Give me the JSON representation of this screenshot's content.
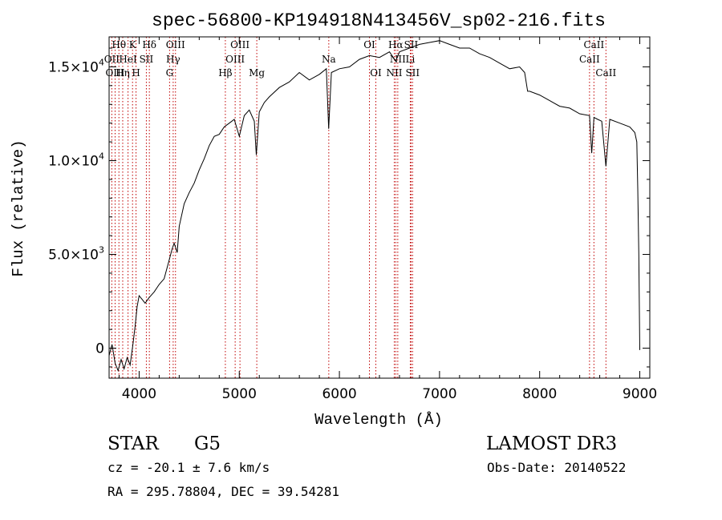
{
  "chart_data": {
    "type": "line",
    "title": "spec-56800-KP194918N413456V_sp02-216.fits",
    "xlabel": "Wavelength (Å)",
    "ylabel": "Flux (relative)",
    "xlim": [
      3700,
      9100
    ],
    "ylim": [
      -1600,
      16600
    ],
    "x_ticks": [
      4000,
      5000,
      6000,
      7000,
      8000,
      9000
    ],
    "x_tick_labels": [
      "4000",
      "5000",
      "6000",
      "7000",
      "8000",
      "9000"
    ],
    "y_ticks": [
      {
        "value": 0,
        "mantissa": "0",
        "exponent": ""
      },
      {
        "value": 5000,
        "mantissa": "5.0×10",
        "exponent": "3"
      },
      {
        "value": 10000,
        "mantissa": "1.0×10",
        "exponent": "4"
      },
      {
        "value": 15000,
        "mantissa": "1.5×10",
        "exponent": "4"
      }
    ],
    "series": [
      {
        "name": "spectrum",
        "x": [
          3700,
          3730,
          3760,
          3790,
          3820,
          3850,
          3880,
          3910,
          3940,
          3960,
          3980,
          4000,
          4030,
          4060,
          4100,
          4150,
          4200,
          4250,
          4300,
          4330,
          4350,
          4380,
          4400,
          4450,
          4500,
          4550,
          4600,
          4650,
          4700,
          4750,
          4800,
          4850,
          4900,
          4950,
          5000,
          5050,
          5100,
          5150,
          5170,
          5200,
          5250,
          5300,
          5400,
          5500,
          5600,
          5700,
          5800,
          5870,
          5893,
          5920,
          6000,
          6100,
          6200,
          6300,
          6400,
          6500,
          6563,
          6600,
          6700,
          6800,
          6900,
          7000,
          7100,
          7200,
          7300,
          7400,
          7500,
          7600,
          7700,
          7800,
          7850,
          7880,
          7900,
          8000,
          8100,
          8200,
          8300,
          8400,
          8498,
          8520,
          8542,
          8580,
          8620,
          8662,
          8700,
          8800,
          8900,
          8950,
          8970,
          8980,
          8990,
          9000
        ],
        "y": [
          -400,
          200,
          -800,
          -1200,
          -600,
          -1100,
          -500,
          -900,
          300,
          1200,
          2200,
          2800,
          2600,
          2400,
          2700,
          3000,
          3400,
          3700,
          4700,
          5300,
          5600,
          5100,
          6500,
          7700,
          8300,
          8800,
          9500,
          10100,
          10800,
          11300,
          11400,
          11800,
          12000,
          12200,
          11300,
          12400,
          12700,
          12100,
          10300,
          12600,
          13100,
          13400,
          13900,
          14200,
          14700,
          14300,
          14600,
          14900,
          11700,
          14700,
          14900,
          15000,
          15400,
          15600,
          15500,
          15800,
          15300,
          15800,
          16000,
          16200,
          16300,
          16400,
          16200,
          16000,
          16000,
          15700,
          15500,
          15200,
          14900,
          15000,
          14700,
          13700,
          13700,
          13500,
          13200,
          12900,
          12800,
          12500,
          12400,
          10400,
          12300,
          12200,
          12100,
          9700,
          12200,
          12000,
          11800,
          11500,
          11000,
          8500,
          5000,
          -100
        ]
      }
    ],
    "spectral_lines": [
      {
        "name": "Hθ",
        "wavelength": 3798,
        "row": 0
      },
      {
        "name": "OII",
        "wavelength": 3727,
        "row": 1
      },
      {
        "name": "OIII",
        "wavelength": 3760,
        "row": 2
      },
      {
        "name": "Hη",
        "wavelength": 3836,
        "row": 2
      },
      {
        "name": "HeI",
        "wavelength": 3889,
        "row": 1
      },
      {
        "name": "K",
        "wavelength": 3934,
        "row": 0
      },
      {
        "name": "H",
        "wavelength": 3969,
        "row": 2
      },
      {
        "name": "SII",
        "wavelength": 4072,
        "row": 1
      },
      {
        "name": "Hδ",
        "wavelength": 4102,
        "row": 0
      },
      {
        "name": "G",
        "wavelength": 4304,
        "row": 2
      },
      {
        "name": "Hγ",
        "wavelength": 4340,
        "row": 1
      },
      {
        "name": "OIII",
        "wavelength": 4363,
        "row": 0
      },
      {
        "name": "Hβ",
        "wavelength": 4861,
        "row": 2
      },
      {
        "name": "OIII",
        "wavelength": 4959,
        "row": 1
      },
      {
        "name": "OIII",
        "wavelength": 5007,
        "row": 0
      },
      {
        "name": "Mg",
        "wavelength": 5175,
        "row": 2
      },
      {
        "name": "Na",
        "wavelength": 5894,
        "row": 1
      },
      {
        "name": "OI",
        "wavelength": 6300,
        "row": 0
      },
      {
        "name": "OI",
        "wavelength": 6364,
        "row": 2
      },
      {
        "name": "NII",
        "wavelength": 6548,
        "row": 2
      },
      {
        "name": "Hα",
        "wavelength": 6563,
        "row": 0
      },
      {
        "name": "NII",
        "wavelength": 6583,
        "row": 1
      },
      {
        "name": "Li",
        "wavelength": 6708,
        "row": 1
      },
      {
        "name": "SII",
        "wavelength": 6716,
        "row": 0
      },
      {
        "name": "SII",
        "wavelength": 6731,
        "row": 2
      },
      {
        "name": "CaII",
        "wavelength": 8498,
        "row": 1
      },
      {
        "name": "CaII",
        "wavelength": 8542,
        "row": 0
      },
      {
        "name": "CaII",
        "wavelength": 8662,
        "row": 2
      }
    ]
  },
  "info": {
    "class": "STAR",
    "subclass": "G5",
    "survey": "LAMOST DR3",
    "cz": "cz = -20.1 ± 7.6 km/s",
    "obs_date": "Obs-Date: 20140522",
    "radec": "RA = 295.78804, DEC =  39.54281"
  },
  "colors": {
    "spectrum": "#000000",
    "line_marker": "#c00000",
    "axes": "#000000"
  }
}
